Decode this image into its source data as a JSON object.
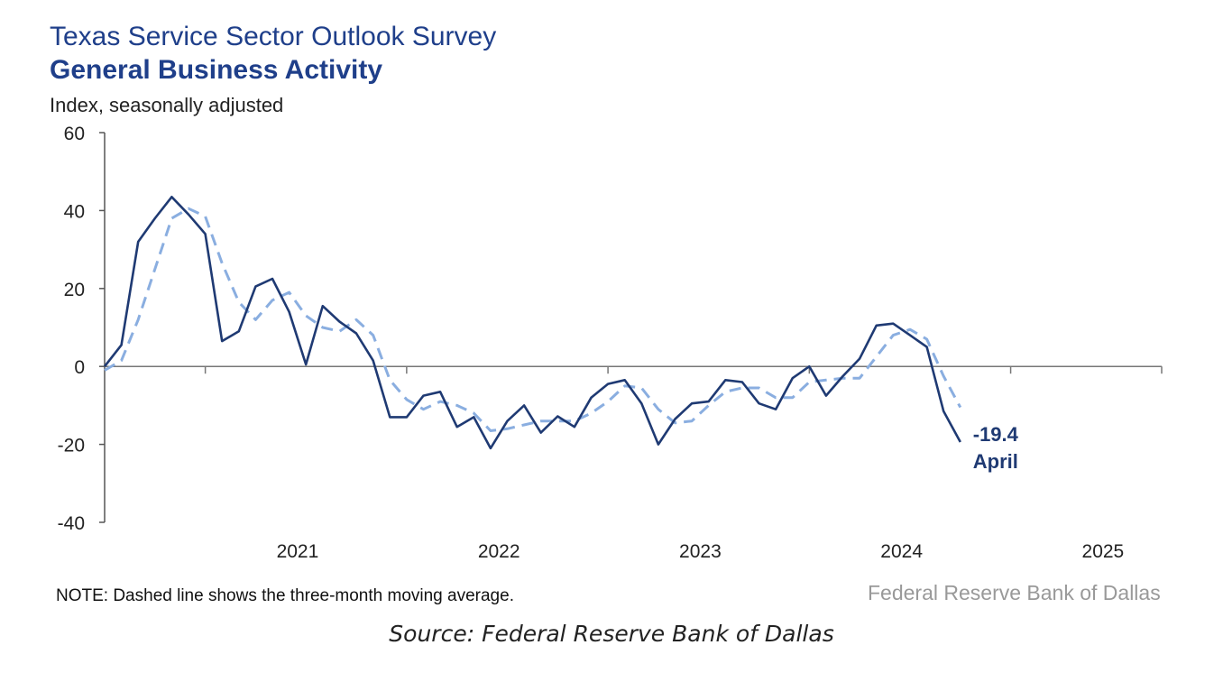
{
  "chart_data": {
    "type": "line",
    "title": "Texas Service Sector Outlook Survey",
    "subtitle": "General Business Activity",
    "ylabel": "Index, seasonally adjusted",
    "ylim": [
      -40,
      60
    ],
    "yticks": [
      -40,
      -20,
      0,
      20,
      40,
      60
    ],
    "xlim": [
      "2020-07",
      "2025-10"
    ],
    "xtick_labels": [
      "2021",
      "2022",
      "2023",
      "2024",
      "2025"
    ],
    "xtick_label_dates": [
      "2021-01",
      "2022-01",
      "2023-01",
      "2024-01",
      "2025-01"
    ],
    "grid": false,
    "start_month": "2020-07",
    "series": [
      {
        "name": "General Business Activity",
        "style": "solid",
        "color": "#1f3a73",
        "values": [
          0,
          5.5,
          32,
          38,
          43.5,
          39,
          34,
          6.5,
          9,
          20.5,
          22.5,
          14,
          0.5,
          15.5,
          11.5,
          8.5,
          1.5,
          -13,
          -13,
          -7.5,
          -6.5,
          -15.5,
          -13,
          -21,
          -14,
          -10,
          -17,
          -12.8,
          -15.5,
          -8,
          -4.5,
          -3.5,
          -9.5,
          -20,
          -13.5,
          -9.5,
          -9,
          -3.5,
          -4,
          -9.5,
          -11,
          -3,
          0,
          -7.5,
          -2.5,
          2,
          10.5,
          11,
          8,
          5,
          -11.5,
          -19.4
        ]
      },
      {
        "name": "three-month moving average",
        "style": "dashed",
        "color": "#8aaee0",
        "values": [
          -1,
          1.5,
          12,
          25,
          38,
          40.5,
          38.5,
          26.5,
          16.5,
          12,
          17,
          19,
          13,
          10,
          9,
          12,
          8,
          -3.5,
          -8.5,
          -11,
          -9,
          -10,
          -12,
          -16.5,
          -16,
          -15,
          -14,
          -14,
          -14,
          -12,
          -9,
          -5,
          -5.5,
          -11,
          -14.5,
          -14,
          -10,
          -6.5,
          -5.5,
          -5.5,
          -8,
          -8,
          -4,
          -3.5,
          -3,
          -3,
          2.5,
          8,
          9.5,
          7,
          -2.5,
          -10.5
        ]
      }
    ],
    "annotation": {
      "value_text": "-19.4",
      "label_text": "April"
    },
    "note": "NOTE: Dashed line shows the three-month moving average.",
    "credit": "Federal Reserve Bank of Dallas",
    "source": "Source: Federal Reserve Bank of Dallas"
  }
}
